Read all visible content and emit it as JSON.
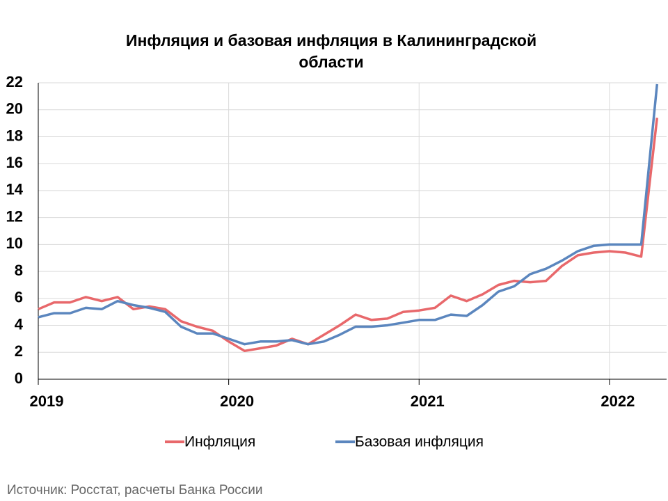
{
  "chart_data": {
    "type": "line",
    "title": [
      "Инфляция и базовая инфляция в Калининградской",
      "области"
    ],
    "source": "Источник: Росстат, расчеты Банка России",
    "x": [
      2019,
      2019.0833,
      2019.1667,
      2019.25,
      2019.3333,
      2019.4167,
      2019.5,
      2019.5833,
      2019.6667,
      2019.75,
      2019.8333,
      2019.9167,
      2020,
      2020.0833,
      2020.1667,
      2020.25,
      2020.3333,
      2020.4167,
      2020.5,
      2020.5833,
      2020.6667,
      2020.75,
      2020.8333,
      2020.9167,
      2021,
      2021.0833,
      2021.1667,
      2021.25,
      2021.3333,
      2021.4167,
      2021.5,
      2021.5833,
      2021.6667,
      2021.75,
      2021.8333,
      2021.9167,
      2022,
      2022.0833,
      2022.1667,
      2022.25
    ],
    "series": [
      {
        "name": "Инфляция",
        "color": "#e8686b",
        "values": [
          5.2,
          5.7,
          5.7,
          6.1,
          5.8,
          6.1,
          5.2,
          5.4,
          5.2,
          4.3,
          3.9,
          3.6,
          2.8,
          2.1,
          2.3,
          2.5,
          3.0,
          2.6,
          3.3,
          4.0,
          4.8,
          4.4,
          4.5,
          5.0,
          5.1,
          5.3,
          6.2,
          5.8,
          6.3,
          7.0,
          7.3,
          7.2,
          7.3,
          8.4,
          9.2,
          9.4,
          9.5,
          9.4,
          9.1,
          19.4
        ]
      },
      {
        "name": "Базовая инфляция",
        "color": "#5b86be",
        "values": [
          4.6,
          4.9,
          4.9,
          5.3,
          5.2,
          5.8,
          5.5,
          5.3,
          5.0,
          3.9,
          3.4,
          3.4,
          3.0,
          2.6,
          2.8,
          2.8,
          2.9,
          2.6,
          2.8,
          3.3,
          3.9,
          3.9,
          4.0,
          4.2,
          4.4,
          4.4,
          4.8,
          4.7,
          5.5,
          6.5,
          6.9,
          7.8,
          8.2,
          8.8,
          9.5,
          9.9,
          10.0,
          10.0,
          10.0,
          21.9
        ]
      }
    ],
    "xlim": [
      2019,
      2022.3
    ],
    "xticks": [
      2019,
      2020,
      2021,
      2022
    ],
    "ylim": [
      0,
      22
    ],
    "yticks": [
      0,
      2,
      4,
      6,
      8,
      10,
      12,
      14,
      16,
      18,
      20,
      22
    ],
    "grid": true,
    "legend": "bottom"
  }
}
